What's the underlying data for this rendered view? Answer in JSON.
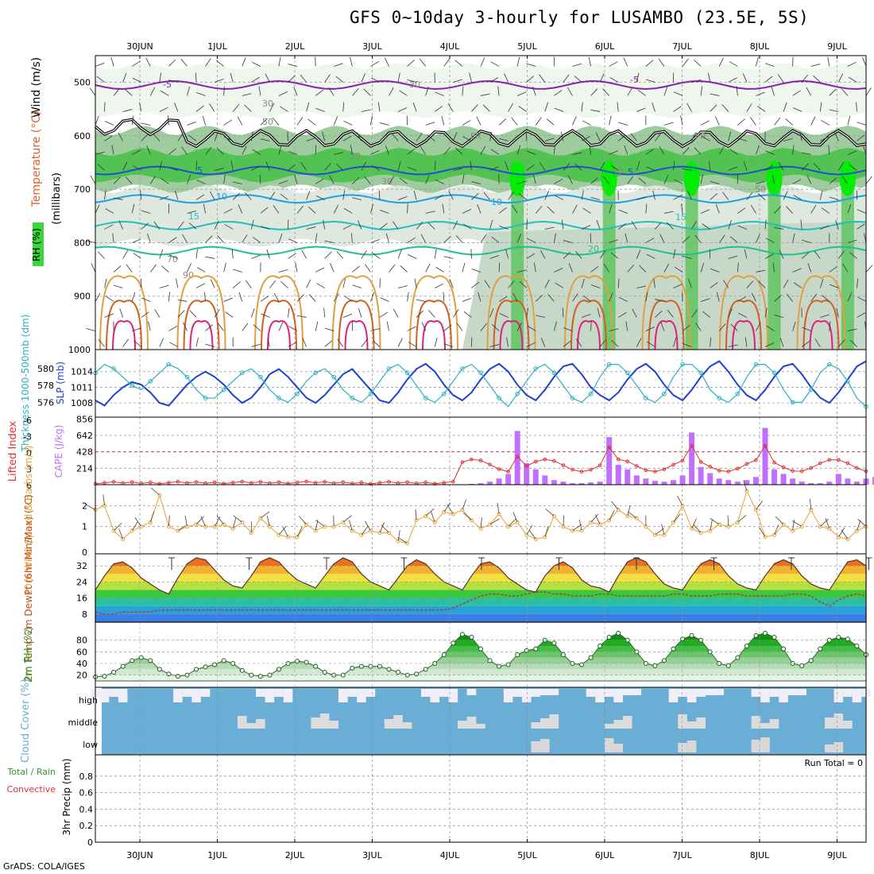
{
  "title": "GFS 0~10day 3-hourly for LUSAMBO (23.5E, 5S)",
  "credit": "GrADS: COLA/IGES",
  "colors": {
    "rh_green": "#3bd63b",
    "cape_purple": "#c070ff",
    "slp_blue": "#2040d0",
    "thickness_cyan": "#2ab0c0",
    "temp_orange": "#e0a040",
    "wind_orange": "#e8a030",
    "lifted_red": "#e03030",
    "cloud_blue": "#6aaed6",
    "cloud_white": "#f2eef6",
    "rh2m_green": "#2ea02e"
  },
  "chart_data": [
    {
      "type": "heatmap",
      "name": "pressure-time cross section",
      "x_dates": [
        "30JUN",
        "1JUL",
        "2JUL",
        "3JUL",
        "4JUL",
        "5JUL",
        "6JUL",
        "7JUL",
        "8JUL",
        "9JUL"
      ],
      "y_ticks": [
        500,
        600,
        700,
        800,
        900,
        1000
      ],
      "ylim": [
        1000,
        450
      ],
      "ylabel": "(millibars)",
      "legend": [
        "Wind (m/s)",
        "Temperature (°C)",
        "RH (%)"
      ],
      "contour_labels": [
        "-5",
        "-5",
        "30",
        "30",
        "50",
        "50",
        "50",
        "FR",
        "FR",
        "5",
        "5",
        "10",
        "10",
        "15",
        "15",
        "20",
        "30",
        "50",
        "70",
        "90"
      ],
      "isotherms": [
        {
          "label": "-5",
          "p": 505
        },
        {
          "label": "5",
          "p": 665
        },
        {
          "label": "10",
          "p": 718
        },
        {
          "label": "15",
          "p": 768
        },
        {
          "label": "20",
          "p": 815
        }
      ],
      "freezing_level_mb": 605
    },
    {
      "type": "line",
      "name": "thickness and slp",
      "left_axis_label": "Thickness 1000-500mb (dm)",
      "left_ticks": [
        576,
        578,
        580
      ],
      "right_axis_label": "SLP (mb)",
      "right_ticks": [
        1008,
        1011,
        1014
      ],
      "series": [
        {
          "name": "SLP",
          "color": "#2040d0",
          "values": [
            1008.5,
            1007.5,
            1009.5,
            1011,
            1012,
            1011.5,
            1010,
            1008,
            1007.5,
            1009.5,
            1011.5,
            1013,
            1014,
            1013,
            1011.5,
            1009.5,
            1008,
            1009,
            1011,
            1013.5,
            1014.5,
            1013,
            1011,
            1009,
            1008,
            1009.5,
            1011.5,
            1013.5,
            1014.5,
            1012.5,
            1010.5,
            1008.5,
            1008,
            1010,
            1012.5,
            1014.5,
            1015.5,
            1014,
            1011.5,
            1009.5,
            1008.5,
            1010,
            1012.5,
            1014.5,
            1015.5,
            1014,
            1011.5,
            1009.5,
            1008.5,
            1010.5,
            1013,
            1015,
            1015.5,
            1013.5,
            1011,
            1009.5,
            1008.5,
            1010,
            1012.5,
            1014.5,
            1015.5,
            1014,
            1011.5,
            1009.5,
            1008.5,
            1010.5,
            1013,
            1015,
            1016,
            1014,
            1011.5,
            1009.5,
            1008.5,
            1010.5,
            1013,
            1015,
            1015.5,
            1013.5,
            1011,
            1009,
            1008,
            1010,
            1012.5,
            1015,
            1016
          ]
        },
        {
          "name": "Thickness",
          "color": "#2ab0c0",
          "values": [
            579.5,
            580.5,
            580,
            579,
            578,
            577.5,
            578.5,
            579.5,
            580.5,
            580,
            579,
            577.5,
            576.5,
            576.5,
            577.5,
            578.5,
            579.5,
            580,
            579,
            577.5,
            576.5,
            576,
            577,
            578.5,
            579.5,
            580,
            579,
            577.5,
            576.5,
            576,
            577,
            578.5,
            580,
            580.5,
            579.5,
            578,
            576.5,
            576,
            577,
            578.5,
            580,
            580.5,
            579.5,
            578,
            576.5,
            575.5,
            577,
            578.5,
            580,
            580.5,
            579.5,
            578,
            576.5,
            576,
            577,
            579,
            580.5,
            580.5,
            579.5,
            578,
            576.5,
            576,
            577,
            579,
            580.5,
            580.5,
            579.5,
            577.5,
            576.5,
            576,
            577,
            579,
            580.5,
            580.5,
            579.5,
            577.5,
            576,
            576,
            577.5,
            579.5,
            580.5,
            580,
            578.5,
            576.5,
            575.5
          ]
        }
      ]
    },
    {
      "type": "bar",
      "name": "cape and lifted index",
      "left_axis_label": "Lifted Index",
      "left_ticks": [
        "-6",
        "-3",
        "0",
        "3",
        "6"
      ],
      "right_axis_label": "CAPE (J/kg)",
      "right_ticks": [
        214,
        428,
        642,
        856
      ],
      "cape_values": [
        0,
        0,
        0,
        0,
        0,
        0,
        0,
        0,
        0,
        0,
        0,
        0,
        0,
        0,
        0,
        0,
        0,
        0,
        0,
        0,
        0,
        0,
        0,
        0,
        0,
        0,
        0,
        0,
        0,
        0,
        0,
        0,
        0,
        0,
        0,
        0,
        0,
        0,
        0,
        0,
        5,
        10,
        20,
        40,
        80,
        140,
        700,
        280,
        200,
        120,
        60,
        40,
        20,
        20,
        30,
        40,
        620,
        260,
        200,
        120,
        80,
        50,
        40,
        60,
        120,
        680,
        230,
        150,
        80,
        60,
        40,
        60,
        100,
        740,
        200,
        140,
        80,
        40,
        20,
        20,
        40,
        140,
        80,
        40,
        80,
        100,
        70,
        60
      ]
    },
    {
      "type": "line",
      "name": "10m wind",
      "left_axis_label": "10m Wind Speed & Barbs (m/s)",
      "yticks": [
        1,
        2
      ],
      "ylim": [
        0,
        2.7
      ],
      "values": [
        1.8,
        2.0,
        0.8,
        0.4,
        0.8,
        1.0,
        1.2,
        2.5,
        1.0,
        0.8,
        1.0,
        1.1,
        1.0,
        1.0,
        1.1,
        0.9,
        1.2,
        0.7,
        1.4,
        1.0,
        0.6,
        0.5,
        0.5,
        1.1,
        0.8,
        1.0,
        1.0,
        1.2,
        0.8,
        0.6,
        0.8,
        0.7,
        0.7,
        0.3,
        0.2,
        1.3,
        1.5,
        1.2,
        1.7,
        1.6,
        1.8,
        1.3,
        0.9,
        1.1,
        1.6,
        1.0,
        1.2,
        0.6,
        0.4,
        0.5,
        1.5,
        1.0,
        0.8,
        0.8,
        1.2,
        1.1,
        1.3,
        1.8,
        1.5,
        1.4,
        1.0,
        0.6,
        0.6,
        1.2,
        2.0,
        0.9,
        0.7,
        0.8,
        1.1,
        1.0,
        1.2,
        2.7,
        1.8,
        0.5,
        0.6,
        1.1,
        0.8,
        1.0,
        1.8,
        1.0,
        0.9,
        0.5,
        0.4,
        0.8,
        1.0
      ]
    },
    {
      "type": "area",
      "name": "2m temperature and dewpoint",
      "left_axis_label": "2m Temp 2m DewPt (6hr Min/Max) (°C)",
      "yticks": [
        8,
        16,
        24,
        32
      ],
      "ylim": [
        4,
        38
      ],
      "temp_values": [
        20,
        27,
        33,
        34,
        31,
        26,
        23,
        20,
        18,
        26,
        33,
        36,
        35,
        30,
        25,
        22,
        21,
        27,
        34,
        36,
        34,
        29,
        25,
        23,
        21,
        27,
        33,
        36,
        34,
        28,
        24,
        22,
        20,
        26,
        32,
        35,
        33,
        28,
        24,
        22,
        20,
        27,
        33,
        34,
        31,
        26,
        23,
        20,
        19,
        27,
        32,
        34,
        31,
        25,
        22,
        21,
        19,
        27,
        34,
        36,
        34,
        28,
        23,
        21,
        20,
        27,
        33,
        35,
        33,
        27,
        23,
        21,
        20,
        27,
        33,
        35,
        33,
        27,
        23,
        21,
        20,
        27,
        34,
        35,
        32
      ],
      "dewpt_values": [
        9,
        8,
        8,
        9,
        9,
        9,
        9,
        10,
        10,
        10,
        10,
        10,
        10,
        10,
        10,
        10,
        10,
        10,
        10,
        10,
        10,
        10,
        10,
        10,
        10,
        10,
        10,
        10,
        10,
        10,
        10,
        10,
        10,
        10,
        10,
        10,
        10,
        10,
        10,
        11,
        13,
        15,
        17,
        18,
        18,
        17,
        17,
        18,
        19,
        19,
        18,
        18,
        17,
        17,
        17,
        18,
        18,
        17,
        17,
        17,
        17,
        17,
        17,
        18,
        18,
        17,
        17,
        17,
        18,
        18,
        18,
        17,
        17,
        17,
        17,
        17,
        18,
        18,
        17,
        14,
        12,
        15,
        17,
        18,
        17
      ]
    },
    {
      "type": "area",
      "name": "2m relative humidity",
      "left_axis_label": "2m RH (%)",
      "yticks": [
        20,
        40,
        60,
        80
      ],
      "ylim": [
        10,
        100
      ],
      "values": [
        17,
        18,
        25,
        35,
        45,
        50,
        45,
        30,
        22,
        18,
        20,
        30,
        34,
        38,
        45,
        40,
        28,
        20,
        18,
        20,
        30,
        40,
        44,
        42,
        35,
        25,
        20,
        20,
        32,
        35,
        35,
        35,
        30,
        25,
        20,
        22,
        30,
        40,
        55,
        75,
        90,
        85,
        65,
        45,
        35,
        38,
        55,
        62,
        65,
        80,
        75,
        55,
        40,
        38,
        50,
        70,
        85,
        92,
        80,
        60,
        40,
        36,
        45,
        65,
        82,
        88,
        80,
        60,
        40,
        36,
        50,
        70,
        88,
        92,
        85,
        65,
        40,
        36,
        45,
        65,
        80,
        85,
        82,
        70,
        55
      ]
    },
    {
      "type": "bar",
      "name": "cloud cover",
      "left_axis_label": "Cloud Cover (%)",
      "levels": [
        "high",
        "middle",
        "low"
      ]
    },
    {
      "type": "line",
      "name": "3hr precipitation",
      "left_axis_label": "3hr Precip (mm)",
      "legend": [
        "Total / Rain",
        "Convective"
      ],
      "yticks": [
        "0",
        "0.2",
        "0.4",
        "0.6",
        "0.8"
      ],
      "ylim": [
        0,
        1
      ],
      "annotation": "Run Total = 0",
      "values": []
    }
  ]
}
